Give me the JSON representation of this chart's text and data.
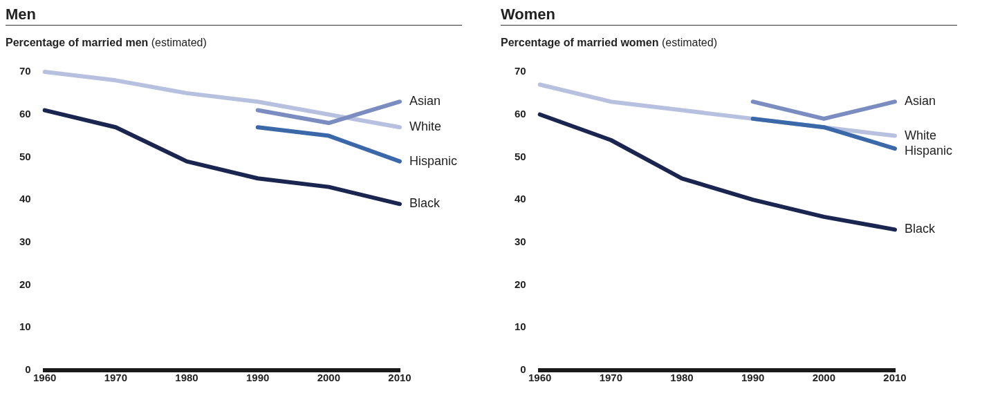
{
  "chart_data": [
    {
      "type": "line",
      "title": "Men",
      "ylabel": "Percentage of married men (estimated)",
      "categories": [
        "1960",
        "1970",
        "1980",
        "1990",
        "2000",
        "2010"
      ],
      "ylim": [
        0,
        70
      ],
      "yticks": [
        0,
        10,
        20,
        30,
        40,
        50,
        60,
        70
      ],
      "grid": false,
      "legend": false,
      "series": [
        {
          "name": "White",
          "color": "#b8c0e0",
          "values": [
            70,
            68,
            65,
            63,
            60,
            57
          ]
        },
        {
          "name": "Black",
          "color": "#1a2550",
          "values": [
            61,
            57,
            49,
            45,
            43,
            39
          ]
        },
        {
          "name": "Asian",
          "color": "#7a8cc0",
          "values": [
            null,
            null,
            null,
            61,
            58,
            63
          ]
        },
        {
          "name": "Hispanic",
          "color": "#3a68a8",
          "values": [
            null,
            null,
            null,
            57,
            55,
            49
          ]
        }
      ]
    },
    {
      "type": "line",
      "title": "Women",
      "ylabel": "Percentage of married women (estimated)",
      "categories": [
        "1960",
        "1970",
        "1980",
        "1990",
        "2000",
        "2010"
      ],
      "ylim": [
        0,
        70
      ],
      "yticks": [
        0,
        10,
        20,
        30,
        40,
        50,
        60,
        70
      ],
      "grid": false,
      "legend": false,
      "series": [
        {
          "name": "White",
          "color": "#b8c0e0",
          "values": [
            67,
            63,
            61,
            59,
            57,
            55
          ]
        },
        {
          "name": "Black",
          "color": "#1a2550",
          "values": [
            60,
            54,
            45,
            40,
            36,
            33
          ]
        },
        {
          "name": "Asian",
          "color": "#7a8cc0",
          "values": [
            null,
            null,
            null,
            63,
            59,
            63
          ]
        },
        {
          "name": "Hispanic",
          "color": "#3a68a8",
          "values": [
            null,
            null,
            null,
            59,
            57,
            52
          ]
        }
      ]
    }
  ]
}
